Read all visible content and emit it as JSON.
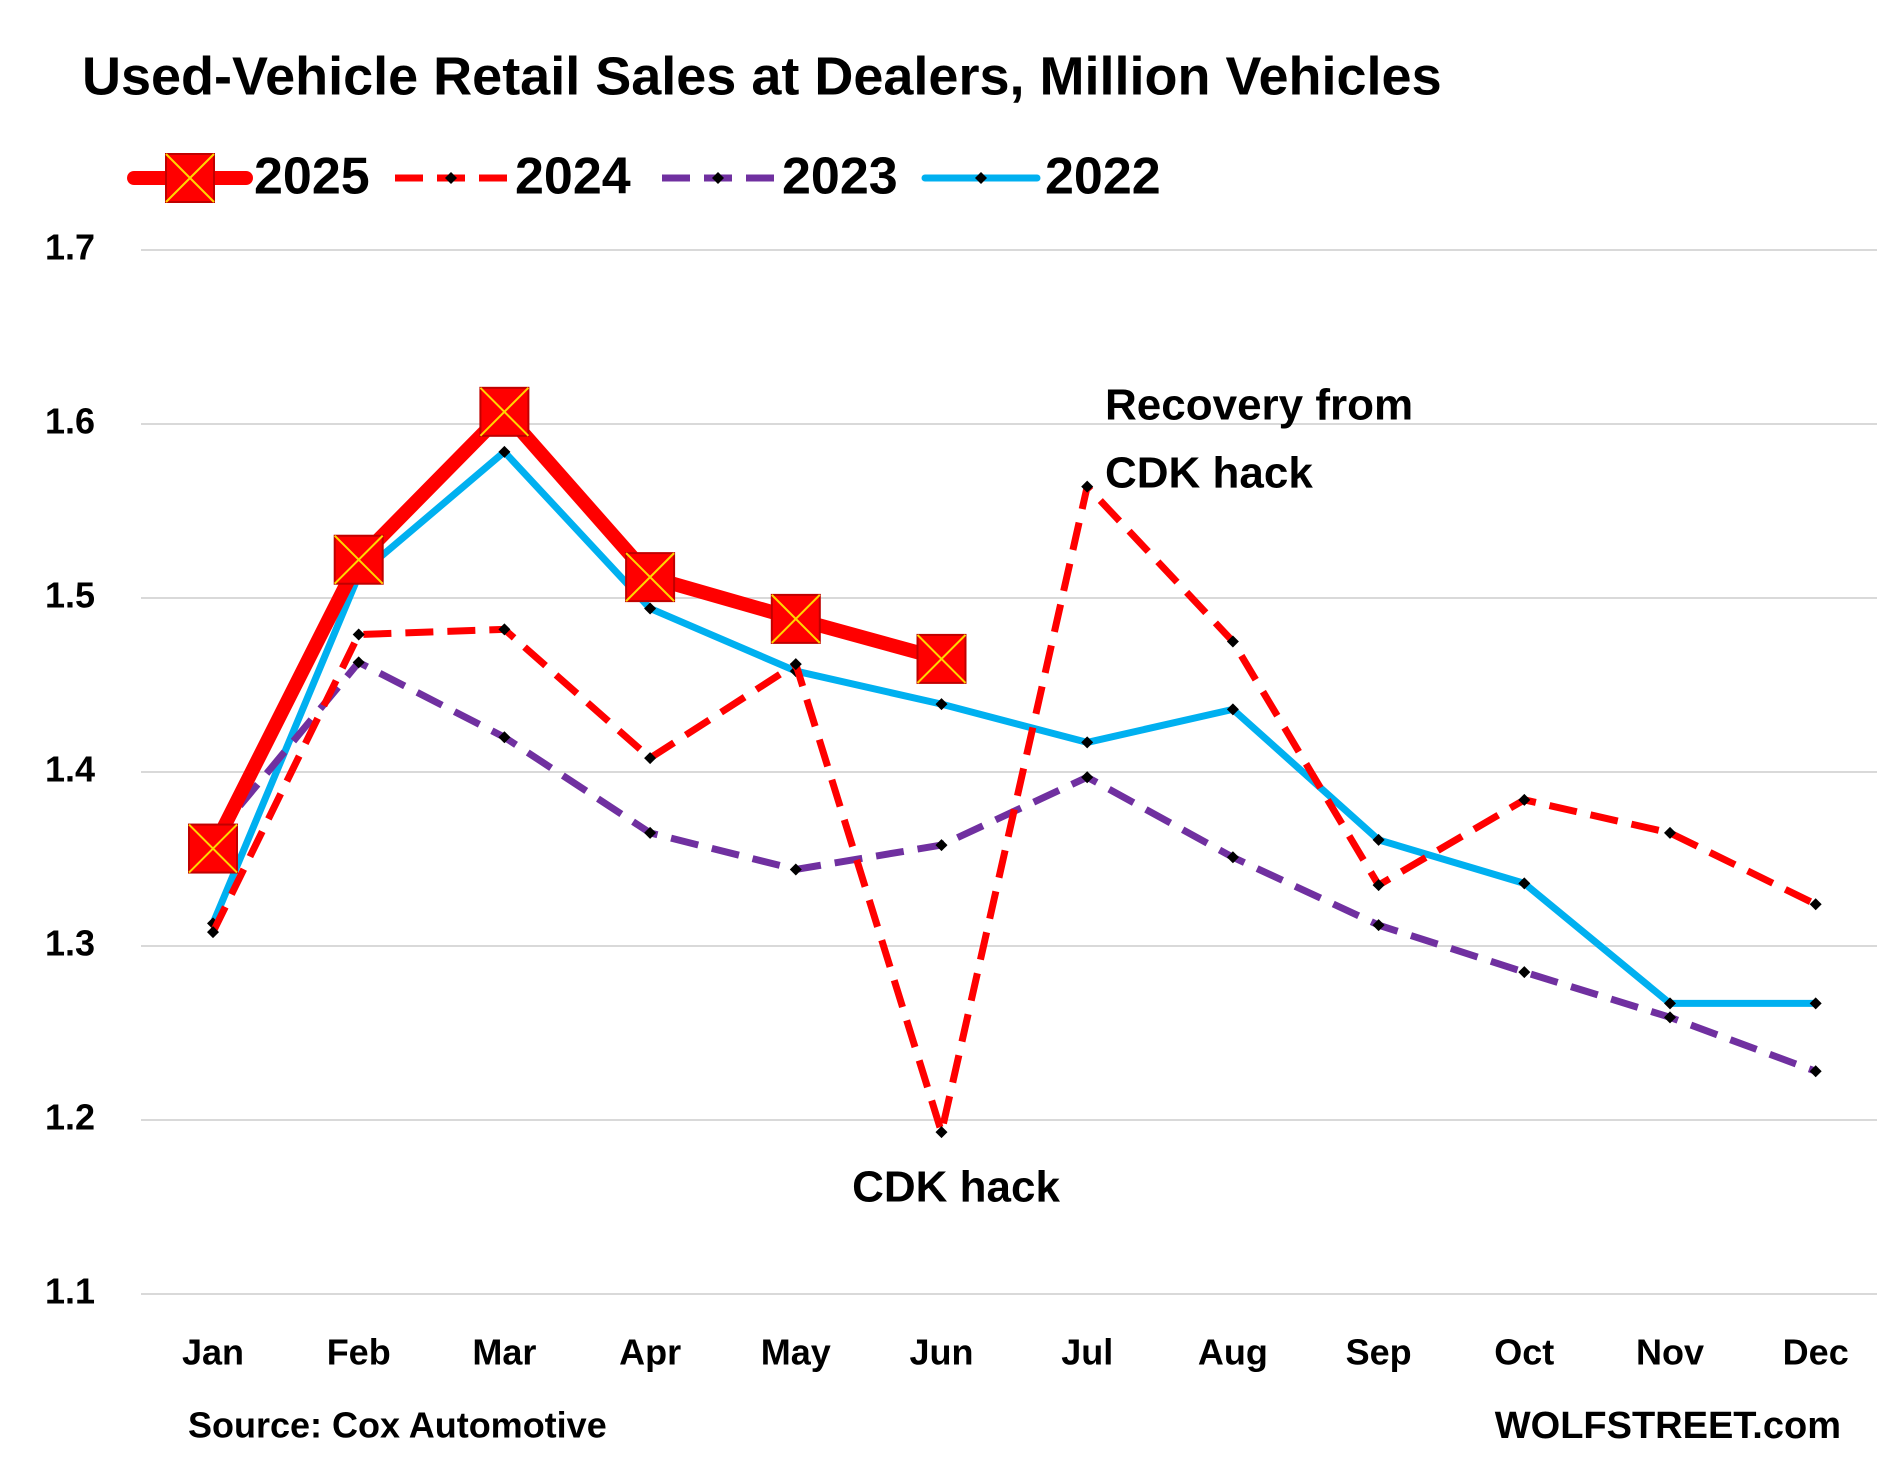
{
  "chart_data": {
    "type": "line",
    "title": "Used-Vehicle Retail Sales at Dealers, Million Vehicles",
    "categories": [
      "Jan",
      "Feb",
      "Mar",
      "Apr",
      "May",
      "Jun",
      "Jul",
      "Aug",
      "Sep",
      "Oct",
      "Nov",
      "Dec"
    ],
    "series": [
      {
        "name": "2025",
        "color": "#ff0000",
        "dashed": false,
        "marker": "square-x",
        "values": [
          1.356,
          1.522,
          1.607,
          1.512,
          1.488,
          1.465,
          null,
          null,
          null,
          null,
          null,
          null
        ]
      },
      {
        "name": "2024",
        "color": "#ff0000",
        "dashed": true,
        "marker": "diamond",
        "values": [
          1.308,
          1.479,
          1.482,
          1.408,
          1.462,
          1.193,
          1.564,
          1.475,
          1.335,
          1.384,
          1.365,
          1.324
        ]
      },
      {
        "name": "2023",
        "color": "#7030a0",
        "dashed": true,
        "marker": "diamond",
        "values": [
          1.362,
          1.463,
          1.42,
          1.365,
          1.344,
          1.358,
          1.397,
          1.351,
          1.312,
          1.285,
          1.259,
          1.228
        ]
      },
      {
        "name": "2022",
        "color": "#00b0f0",
        "dashed": false,
        "marker": "diamond",
        "values": [
          1.313,
          1.513,
          1.584,
          1.494,
          1.458,
          1.439,
          1.417,
          1.436,
          1.361,
          1.336,
          1.267,
          1.267
        ]
      }
    ],
    "ylim": [
      1.1,
      1.7
    ],
    "yticks": [
      1.1,
      1.2,
      1.3,
      1.4,
      1.5,
      1.6,
      1.7
    ],
    "grid": true,
    "legend": "top",
    "annotations": [
      {
        "lines": [
          "Recovery from",
          "CDK hack"
        ]
      },
      {
        "lines": [
          "CDK hack"
        ]
      }
    ],
    "source": "Source:  Cox Automotive",
    "credit": "WOLFSTREET.com"
  }
}
